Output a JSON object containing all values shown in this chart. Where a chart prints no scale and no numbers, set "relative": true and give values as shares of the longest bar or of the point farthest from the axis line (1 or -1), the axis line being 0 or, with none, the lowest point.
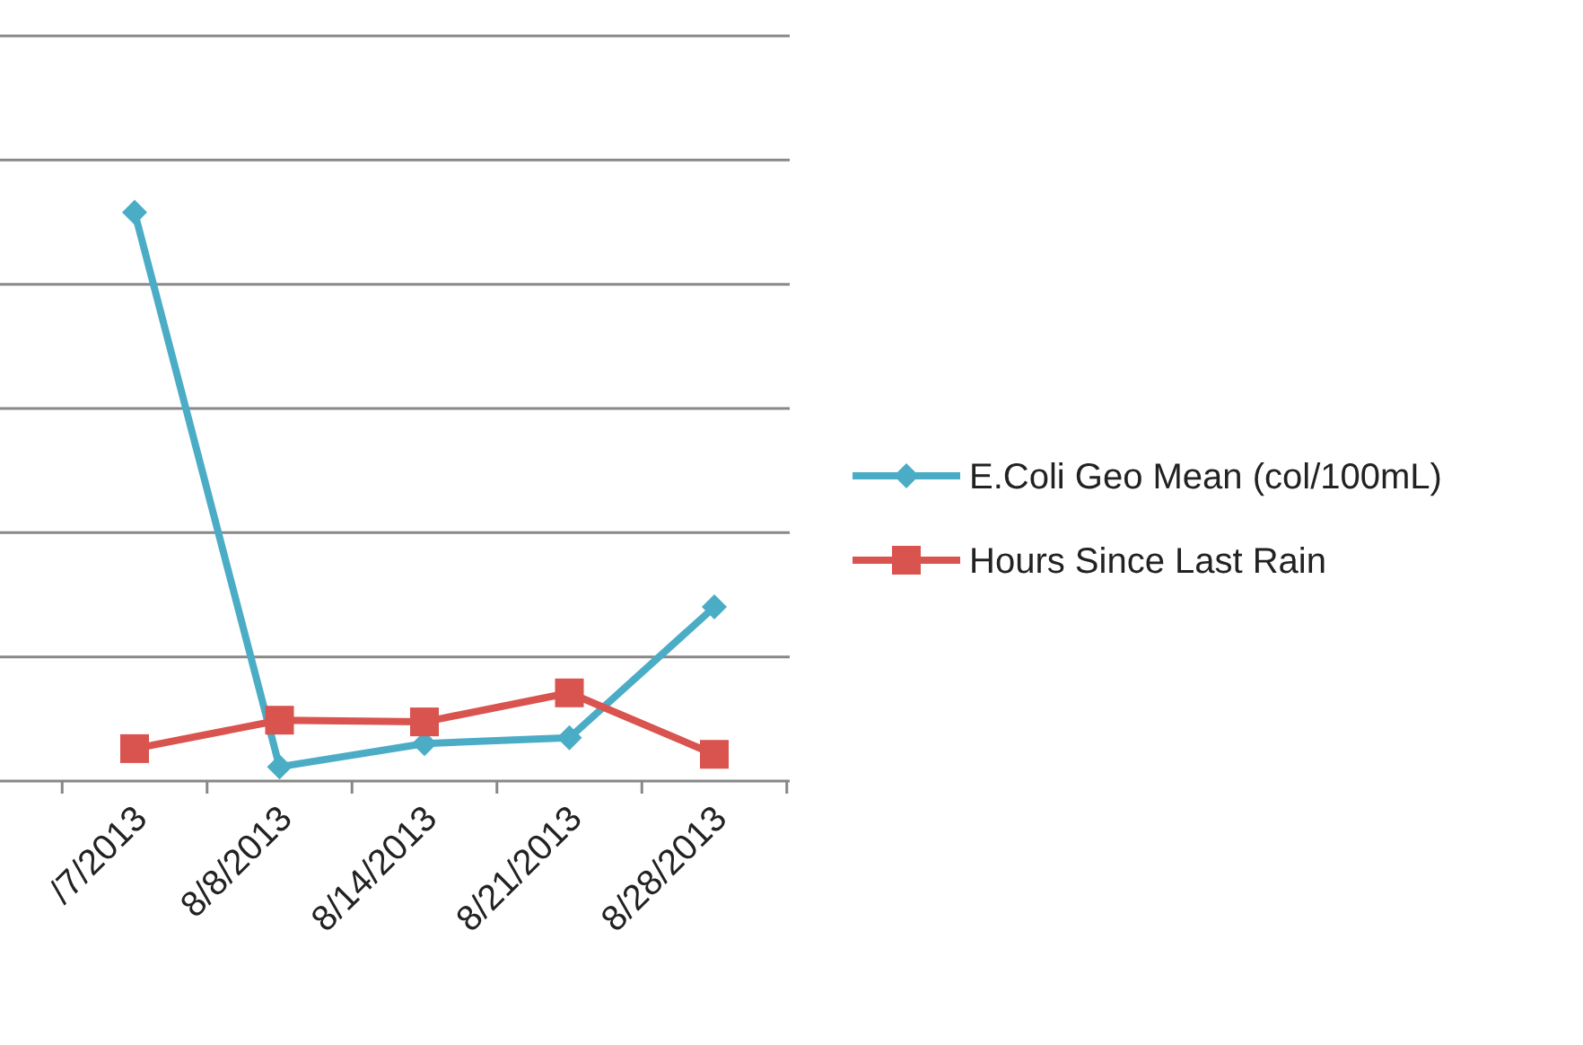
{
  "chart_data": {
    "type": "line",
    "relative": true,
    "categories": [
      "/7/2013",
      "8/8/2013",
      "8/14/2013",
      "8/21/2013",
      "8/28/2013"
    ],
    "series": [
      {
        "name": "E.Coli Geo Mean (col/100mL)",
        "color": "#4bacc6",
        "marker": "diamond",
        "values": [
          1,
          0.025,
          0.066,
          0.076,
          0.306
        ]
      },
      {
        "name": "Hours Since Last Rain",
        "color": "#d9534f",
        "marker": "square",
        "values": [
          0.057,
          0.107,
          0.104,
          0.155,
          0.047
        ]
      }
    ],
    "grid": "y",
    "legend": "right"
  }
}
